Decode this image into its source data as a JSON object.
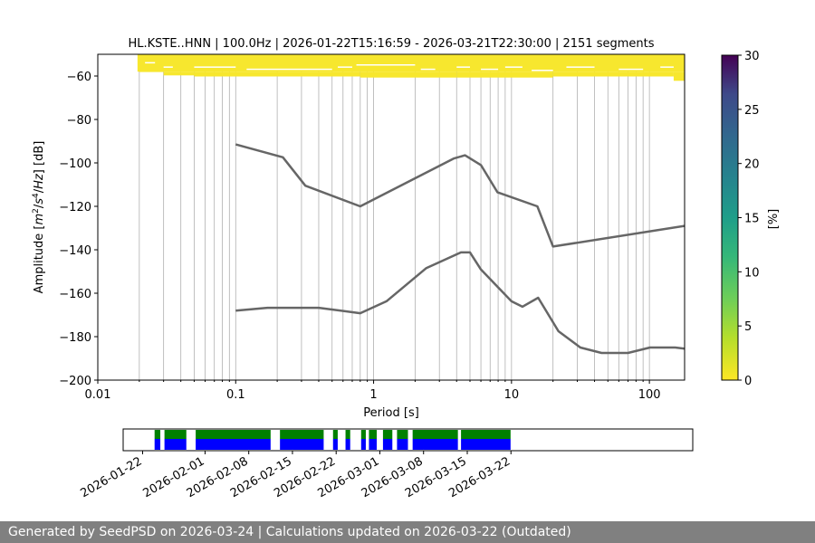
{
  "chart_data": {
    "type": "line",
    "title": "HL.KSTE..HNN | 100.0Hz | 2026-01-22T15:16:59 - 2026-03-21T22:30:00 | 2151 segments",
    "xlabel": "Period [s]",
    "ylabel": "Amplitude [$m^2/s^4/Hz$] [dB]",
    "xscale": "log",
    "xlim": [
      0.01,
      180
    ],
    "ylim": [
      -200,
      -50
    ],
    "grid": "vertical",
    "x_ticks": [
      0.01,
      0.1,
      1,
      10,
      100
    ],
    "x_tick_labels": [
      "0.01",
      "0.1",
      "1",
      "10",
      "100"
    ],
    "y_ticks": [
      -200,
      -180,
      -160,
      -140,
      -120,
      -100,
      -80,
      -60
    ],
    "y_tick_labels": [
      "−200",
      "−180",
      "−160",
      "−140",
      "−120",
      "−100",
      "−80",
      "−60"
    ],
    "series": [
      {
        "name": "",
        "color": "#666666",
        "x": [
          0.1,
          0.22,
          0.32,
          0.8,
          3.8,
          4.6,
          6.0,
          7.9,
          15.4,
          20.0,
          180.0
        ],
        "y": [
          -91.5,
          -97.4,
          -110.5,
          -120.0,
          -98.0,
          -96.5,
          -101.0,
          -113.5,
          -120.0,
          -138.5,
          -129.0
        ]
      },
      {
        "name": "",
        "color": "#666666",
        "x": [
          0.1,
          0.17,
          0.4,
          0.8,
          1.24,
          2.4,
          4.3,
          5.0,
          6.0,
          10.0,
          12.0,
          15.6,
          21.9,
          31.6,
          45.0,
          70.0,
          101.0,
          154.0,
          180.0
        ],
        "y": [
          -168.0,
          -166.7,
          -166.7,
          -169.2,
          -163.7,
          -148.5,
          -141.2,
          -141.2,
          -149.1,
          -163.7,
          -166.2,
          -162.1,
          -177.5,
          -185.0,
          -187.5,
          -187.5,
          -185.0,
          -185.0,
          -185.5
        ]
      }
    ],
    "psd_density_region": {
      "color": "#f7e72e",
      "x_range": [
        0.02,
        180
      ],
      "y_range": [
        -62,
        -50
      ]
    },
    "colorbar": {
      "label": "[%]",
      "min": 0,
      "max": 30,
      "ticks": [
        0,
        5,
        10,
        15,
        20,
        25,
        30
      ],
      "tick_labels": [
        "0",
        "5",
        "10",
        "15",
        "20",
        "25",
        "30"
      ],
      "colormap": "viridis_r"
    },
    "coverage": {
      "date_ticks": [
        "2026-01-22",
        "2026-02-01",
        "2026-02-08",
        "2026-02-15",
        "2026-02-22",
        "2026-03-01",
        "2026-03-08",
        "2026-03-15",
        "2026-03-22"
      ],
      "data_color": "#008000",
      "psd_color": "#0000ff",
      "blocks": [
        [
          "2026-01-23T22:00",
          "2026-01-24T20:00"
        ],
        [
          "2026-01-25T12:00",
          "2026-01-29T00:00"
        ],
        [
          "2026-01-30T12:00",
          "2026-02-11T12:00"
        ],
        [
          "2026-02-13T00:00",
          "2026-02-20T00:00"
        ],
        [
          "2026-02-21T12:00",
          "2026-02-22T06:00"
        ],
        [
          "2026-02-23T12:00",
          "2026-02-24T06:00"
        ],
        [
          "2026-02-26T00:00",
          "2026-02-26T18:00"
        ],
        [
          "2026-02-27T06:00",
          "2026-02-28T12:00"
        ],
        [
          "2026-03-01T12:00",
          "2026-03-03T00:00"
        ],
        [
          "2026-03-03T18:00",
          "2026-03-05T12:00"
        ],
        [
          "2026-03-06T06:00",
          "2026-03-13T12:00"
        ],
        [
          "2026-03-14T00:00",
          "2026-03-21T22:30"
        ]
      ]
    }
  },
  "footer": {
    "text": "Generated by SeedPSD on 2026-03-24 | Calculations updated on 2026-03-22 (Outdated)"
  }
}
